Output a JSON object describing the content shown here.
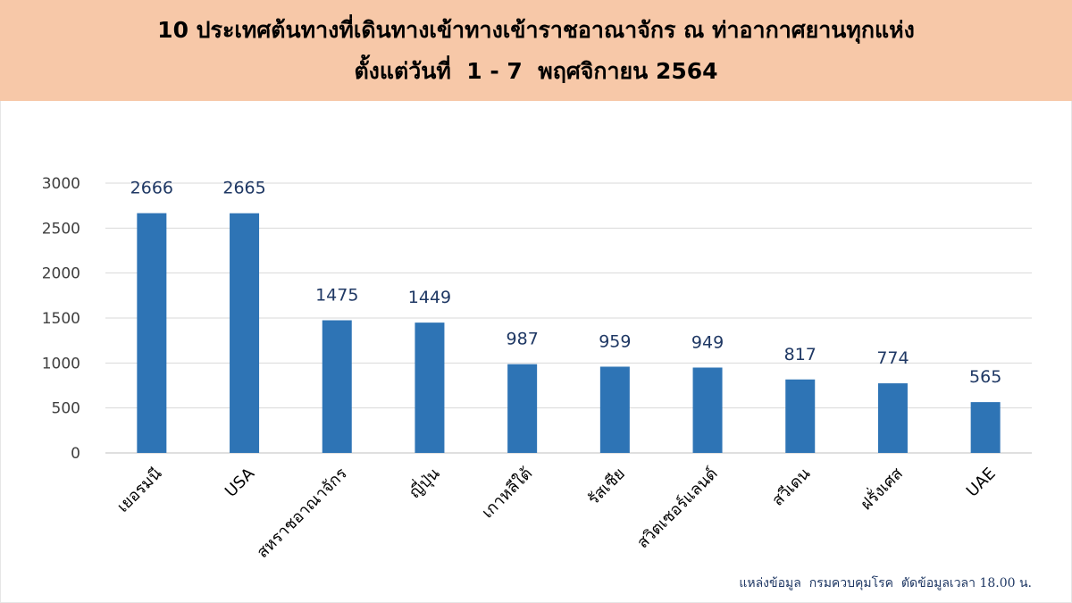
{
  "header": {
    "title_line1": "10 ประเทศต้นทางที่เดินทางเข้าทางเข้าราชอาณาจักร ณ ท่าอากาศยานทุกแห่ง",
    "title_line2": "ตั้งแต่วันที่  1 - 7  พฤศจิกายน 2564"
  },
  "footer": {
    "source": "แหล่งข้อมูล  กรมควบคุมโรค  ตัดข้อมูลเวลา 18.00 น."
  },
  "colors": {
    "bar": "#2e74b5",
    "title_band": "#f7c8a8",
    "data_label": "#1f3864",
    "grid": "#d9d9d9"
  },
  "chart_data": {
    "type": "bar",
    "categories": [
      "เยอรมนี",
      "USA",
      "สหราชอาณาจักร",
      "ญี่ปุ่น",
      "เกาหลีใต้",
      "รัสเซีย",
      "สวิตเซอร์แลนด์",
      "สวีเดน",
      "ฝรั่งเศส",
      "UAE"
    ],
    "values": [
      2666,
      2665,
      1475,
      1449,
      987,
      959,
      949,
      817,
      774,
      565
    ],
    "ylim": [
      0,
      3000
    ],
    "yticks": [
      0,
      500,
      1000,
      1500,
      2000,
      2500,
      3000
    ],
    "grid": true,
    "legend": "none",
    "data_labels": true
  }
}
